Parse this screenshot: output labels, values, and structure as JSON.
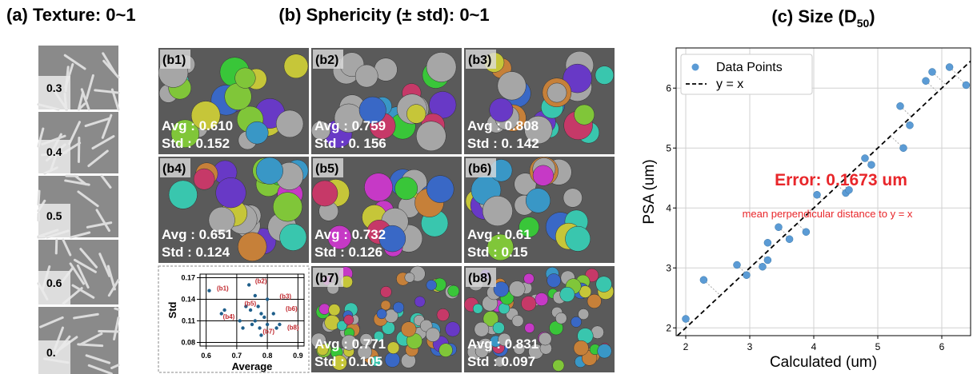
{
  "panel_a": {
    "title": "(a) Texture: 0~1",
    "labels": [
      "0.3",
      "0.4",
      "0.5",
      "0.6",
      "0."
    ]
  },
  "panel_b": {
    "title": "(b) Sphericity (± std): 0~1",
    "tiles": [
      {
        "label": "(b1)",
        "avg": "Avg : 0.610",
        "std": "Std : 0.152"
      },
      {
        "label": "(b2)",
        "avg": "Avg : 0.759",
        "std": "Std : 0. 156"
      },
      {
        "label": "(b3)",
        "avg": "Avg : 0.808",
        "std": "Std : 0. 142"
      },
      {
        "label": "(b4)",
        "avg": "Avg : 0.651",
        "std": "Std : 0.124"
      },
      {
        "label": "(b5)",
        "avg": "Avg : 0.732",
        "std": "Std : 0.126"
      },
      {
        "label": "(b6)",
        "avg": "Avg : 0.61",
        "std": "Std : 0.15"
      },
      {
        "label": "(b7)",
        "avg": "Avg : 0.771",
        "std": "Std : 0.105"
      },
      {
        "label": "(b8)",
        "avg": "Avg : 0.831",
        "std": "Std : 0.097"
      }
    ]
  },
  "chart_data": [
    {
      "type": "scatter",
      "xlabel": "Average",
      "ylabel": "Std",
      "color": "#1f5f8b",
      "x": [
        0.61,
        0.65,
        0.66,
        0.71,
        0.72,
        0.73,
        0.745,
        0.75,
        0.76,
        0.76,
        0.77,
        0.775,
        0.78,
        0.78,
        0.79,
        0.8,
        0.8,
        0.82,
        0.83,
        0.84,
        0.74
      ],
      "values": [
        0.152,
        0.12,
        0.125,
        0.11,
        0.1,
        0.13,
        0.125,
        0.105,
        0.11,
        0.145,
        0.13,
        0.1,
        0.12,
        0.09,
        0.115,
        0.105,
        0.14,
        0.12,
        0.1,
        0.105,
        0.16
      ],
      "xlim": [
        0.58,
        0.92
      ],
      "ylim": [
        0.075,
        0.175
      ],
      "xticks": [
        0.6,
        0.7,
        0.8,
        0.9
      ],
      "yticks": [
        0.08,
        0.11,
        0.14,
        0.17
      ],
      "grid": true,
      "annotation_color": "#c0272d",
      "annotations": [
        {
          "text": "(b1)",
          "x": 0.635,
          "y": 0.152
        },
        {
          "text": "(b2)",
          "x": 0.76,
          "y": 0.162
        },
        {
          "text": "(b3)",
          "x": 0.84,
          "y": 0.141
        },
        {
          "text": "(b4)",
          "x": 0.655,
          "y": 0.113
        },
        {
          "text": "(b5)",
          "x": 0.725,
          "y": 0.131
        },
        {
          "text": "(b6)",
          "x": 0.86,
          "y": 0.124
        },
        {
          "text": "(b7)",
          "x": 0.785,
          "y": 0.092
        },
        {
          "text": "(b8)",
          "x": 0.865,
          "y": 0.098
        }
      ]
    },
    {
      "type": "scatter",
      "title": "(c) Size (D",
      "title_sub": "50",
      "title_end": ")",
      "xlabel": "Calculated (um)",
      "ylabel": "PSA (um)",
      "series": [
        {
          "name": "Data Points",
          "color": "#5b9bd5",
          "x": [
            2.0,
            2.28,
            2.8,
            2.95,
            3.2,
            3.28,
            3.28,
            3.45,
            3.62,
            3.88,
            4.05,
            4.5,
            4.55,
            4.8,
            4.9,
            5.35,
            5.4,
            5.5,
            5.75,
            5.85,
            6.12,
            6.38
          ],
          "values": [
            2.15,
            2.8,
            3.05,
            2.88,
            3.02,
            3.13,
            3.42,
            3.68,
            3.48,
            3.6,
            4.22,
            4.25,
            4.3,
            4.83,
            4.72,
            5.7,
            5.0,
            5.38,
            6.12,
            6.27,
            6.35,
            6.05
          ]
        }
      ],
      "reference_line": {
        "name": "y = x",
        "color": "#000000"
      },
      "annotations": [
        {
          "text": "Error: 0.1673 um"
        },
        {
          "text": "mean perpendicular distance to y = x"
        }
      ],
      "annotation_color": "#e8262a",
      "xlim": [
        1.85,
        6.45
      ],
      "ylim": [
        1.87,
        6.67
      ],
      "xticks": [
        2,
        3,
        4,
        5,
        6
      ],
      "yticks": [
        2,
        3,
        4,
        5,
        6
      ],
      "grid": true,
      "legend": "upper left"
    }
  ]
}
